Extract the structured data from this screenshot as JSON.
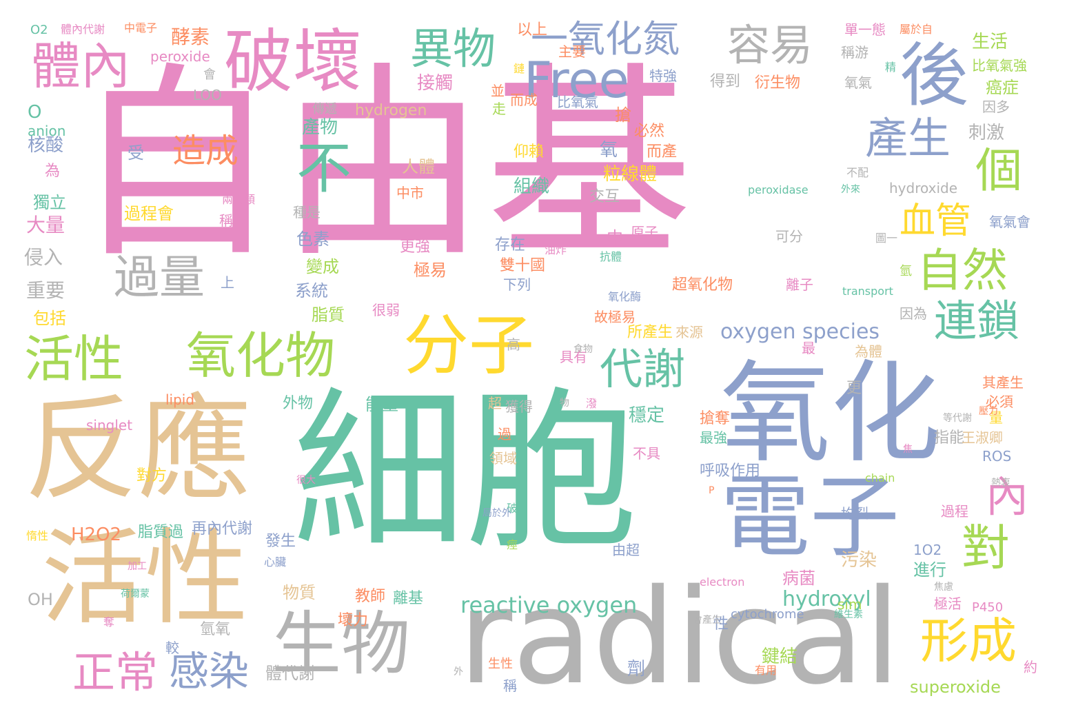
{
  "palette": {
    "pink": "#e78ac3",
    "tan": "#e5c494",
    "green": "#66c2a5",
    "blue": "#8da0cb",
    "gray": "#b3b3b3",
    "lime": "#a6d854",
    "yellow": "#ffd92f",
    "orange": "#fc8d62"
  },
  "words": [
    {
      "text": "自由基",
      "c": "pink"
    },
    {
      "text": "細胞",
      "c": "green"
    },
    {
      "text": "radical",
      "c": "gray"
    },
    {
      "text": "反應",
      "c": "tan"
    },
    {
      "text": "氧化",
      "c": "blue"
    },
    {
      "text": "活性",
      "c": "tan"
    },
    {
      "text": "電子",
      "c": "blue"
    },
    {
      "text": "破壞",
      "c": "pink"
    },
    {
      "text": "後",
      "c": "blue"
    },
    {
      "text": "生物",
      "c": "gray"
    },
    {
      "text": "分子",
      "c": "yellow"
    },
    {
      "text": "氧化物",
      "c": "lime"
    },
    {
      "text": "活性",
      "c": "lime"
    },
    {
      "text": "體內",
      "c": "pink"
    },
    {
      "text": "異物",
      "c": "green"
    },
    {
      "text": "Free",
      "c": "blue"
    },
    {
      "text": "一氧化氮",
      "c": "blue"
    },
    {
      "text": "容易",
      "c": "gray"
    },
    {
      "text": "不",
      "c": "green"
    },
    {
      "text": "產生",
      "c": "blue"
    },
    {
      "text": "個",
      "c": "lime"
    },
    {
      "text": "自然",
      "c": "lime"
    },
    {
      "text": "連鎖",
      "c": "green"
    },
    {
      "text": "代謝",
      "c": "green"
    },
    {
      "text": "對",
      "c": "lime"
    },
    {
      "text": "形成",
      "c": "yellow"
    },
    {
      "text": "正常",
      "c": "pink"
    },
    {
      "text": "感染",
      "c": "blue"
    },
    {
      "text": "血管",
      "c": "yellow"
    },
    {
      "text": "內",
      "c": "pink"
    },
    {
      "text": "過量",
      "c": "gray"
    },
    {
      "text": "造成",
      "c": "orange"
    },
    {
      "text": "reactive oxygen",
      "c": "green"
    },
    {
      "text": "oxygen species",
      "c": "blue"
    },
    {
      "text": "hydroxyl",
      "c": "green"
    },
    {
      "text": "superoxide",
      "c": "lime"
    },
    {
      "text": "酵素",
      "c": "orange"
    },
    {
      "text": "peroxide",
      "c": "pink"
    },
    {
      "text": "接觸",
      "c": "pink"
    },
    {
      "text": "hydrogen",
      "c": "tan"
    },
    {
      "text": "產物",
      "c": "green"
    },
    {
      "text": "核酸",
      "c": "blue"
    },
    {
      "text": "獨立",
      "c": "green"
    },
    {
      "text": "大量",
      "c": "pink"
    },
    {
      "text": "侵入",
      "c": "gray"
    },
    {
      "text": "重要",
      "c": "gray"
    },
    {
      "text": "包括",
      "c": "yellow"
    },
    {
      "text": "O2",
      "c": "green"
    },
    {
      "text": "體內代謝",
      "c": "pink"
    },
    {
      "text": "中電子",
      "c": "orange"
    },
    {
      "text": "以上",
      "c": "orange"
    },
    {
      "text": "主要",
      "c": "orange"
    },
    {
      "text": "單一態",
      "c": "pink"
    },
    {
      "text": "屬於自",
      "c": "orange"
    },
    {
      "text": "生活",
      "c": "lime"
    },
    {
      "text": "稱游",
      "c": "gray"
    },
    {
      "text": "比氧氣強",
      "c": "lime"
    },
    {
      "text": "癌症",
      "c": "lime"
    },
    {
      "text": "因多",
      "c": "gray"
    },
    {
      "text": "刺激",
      "c": "gray"
    },
    {
      "text": "hydroxide",
      "c": "gray"
    },
    {
      "text": "peroxidase",
      "c": "green"
    },
    {
      "text": "氧氣會",
      "c": "blue"
    },
    {
      "text": "anion",
      "c": "green"
    },
    {
      "text": "O",
      "c": "green"
    },
    {
      "text": "LOO",
      "c": "gray"
    },
    {
      "text": "特強",
      "c": "blue"
    },
    {
      "text": "得到",
      "c": "gray"
    },
    {
      "text": "衍生物",
      "c": "orange"
    },
    {
      "text": "氧氣",
      "c": "gray"
    },
    {
      "text": "而成",
      "c": "orange"
    },
    {
      "text": "比氧氣",
      "c": "blue"
    },
    {
      "text": "傳遞",
      "c": "gray"
    },
    {
      "text": "搶",
      "c": "orange"
    },
    {
      "text": "必然",
      "c": "orange"
    },
    {
      "text": "受",
      "c": "blue"
    },
    {
      "text": "人體",
      "c": "tan"
    },
    {
      "text": "仰賴",
      "c": "yellow"
    },
    {
      "text": "組織",
      "c": "green"
    },
    {
      "text": "氧",
      "c": "blue"
    },
    {
      "text": "而產",
      "c": "orange"
    },
    {
      "text": "粒線體",
      "c": "yellow"
    },
    {
      "text": "交互",
      "c": "gray"
    },
    {
      "text": "過程會",
      "c": "yellow"
    },
    {
      "text": "種是",
      "c": "gray"
    },
    {
      "text": "兩大類",
      "c": "pink"
    },
    {
      "text": "稱為",
      "c": "pink"
    },
    {
      "text": "色素",
      "c": "blue"
    },
    {
      "text": "變成",
      "c": "lime"
    },
    {
      "text": "系統",
      "c": "blue"
    },
    {
      "text": "脂質",
      "c": "lime"
    },
    {
      "text": "中",
      "c": "pink"
    },
    {
      "text": "原子",
      "c": "pink"
    },
    {
      "text": "可分",
      "c": "gray"
    },
    {
      "text": "更強",
      "c": "pink"
    },
    {
      "text": "存在",
      "c": "blue"
    },
    {
      "text": "極易",
      "c": "orange"
    },
    {
      "text": "雙十國",
      "c": "orange"
    },
    {
      "text": "下列",
      "c": "blue"
    },
    {
      "text": "抗體",
      "c": "green"
    },
    {
      "text": "超氧化物",
      "c": "orange"
    },
    {
      "text": "離子",
      "c": "pink"
    },
    {
      "text": "transport",
      "c": "green"
    },
    {
      "text": "氧化酶",
      "c": "blue"
    },
    {
      "text": "故極易",
      "c": "orange"
    },
    {
      "text": "因為",
      "c": "gray"
    },
    {
      "text": "很弱",
      "c": "pink"
    },
    {
      "text": "所產生",
      "c": "yellow"
    },
    {
      "text": "來源",
      "c": "tan"
    },
    {
      "text": "高",
      "c": "gray"
    },
    {
      "text": "最",
      "c": "pink"
    },
    {
      "text": "為體",
      "c": "tan"
    },
    {
      "text": "其產生",
      "c": "orange"
    },
    {
      "text": "必須",
      "c": "orange"
    },
    {
      "text": "獲得",
      "c": "gray"
    },
    {
      "text": "具有",
      "c": "pink"
    },
    {
      "text": "lipid",
      "c": "orange"
    },
    {
      "text": "外物",
      "c": "green"
    },
    {
      "text": "能量",
      "c": "green"
    },
    {
      "text": "超",
      "c": "tan"
    },
    {
      "text": "穩定",
      "c": "green"
    },
    {
      "text": "更",
      "c": "gray"
    },
    {
      "text": "singlet",
      "c": "pink"
    },
    {
      "text": "搶奪",
      "c": "orange"
    },
    {
      "text": "最強",
      "c": "green"
    },
    {
      "text": "指能",
      "c": "gray"
    },
    {
      "text": "王淑卿",
      "c": "tan"
    },
    {
      "text": "ROS",
      "c": "blue"
    },
    {
      "text": "對方",
      "c": "yellow"
    },
    {
      "text": "領域",
      "c": "tan"
    },
    {
      "text": "過",
      "c": "orange"
    },
    {
      "text": "不具",
      "c": "pink"
    },
    {
      "text": "呼吸作用",
      "c": "blue"
    },
    {
      "text": "chain",
      "c": "lime"
    },
    {
      "text": "H2O2",
      "c": "orange"
    },
    {
      "text": "脂質過",
      "c": "green"
    },
    {
      "text": "再內代謝",
      "c": "blue"
    },
    {
      "text": "發生",
      "c": "blue"
    },
    {
      "text": "均裂",
      "c": "blue"
    },
    {
      "text": "過程",
      "c": "pink"
    },
    {
      "text": "由超",
      "c": "blue"
    },
    {
      "text": "1O2",
      "c": "blue"
    },
    {
      "text": "污染",
      "c": "tan"
    },
    {
      "text": "進行",
      "c": "green"
    },
    {
      "text": "物質",
      "c": "tan"
    },
    {
      "text": "病菌",
      "c": "pink"
    },
    {
      "text": "electron",
      "c": "pink"
    },
    {
      "text": "sim",
      "c": "lime"
    },
    {
      "text": "極活",
      "c": "pink"
    },
    {
      "text": "P450",
      "c": "pink"
    },
    {
      "text": "OH",
      "c": "gray"
    },
    {
      "text": "教師",
      "c": "orange"
    },
    {
      "text": "離基",
      "c": "green"
    },
    {
      "text": "壞力",
      "c": "orange"
    },
    {
      "text": "cytochrome",
      "c": "blue"
    },
    {
      "text": "氫氧",
      "c": "gray"
    },
    {
      "text": "較",
      "c": "blue"
    },
    {
      "text": "體代謝",
      "c": "gray"
    },
    {
      "text": "劑",
      "c": "blue"
    },
    {
      "text": "鍵結",
      "c": "lime"
    },
    {
      "text": "稱",
      "c": "blue"
    },
    {
      "text": "有用",
      "c": "orange"
    },
    {
      "text": "約",
      "c": "pink"
    },
    {
      "text": "性",
      "c": "blue"
    },
    {
      "text": "上",
      "c": "blue"
    },
    {
      "text": "為",
      "c": "pink"
    },
    {
      "text": "會",
      "c": "gray"
    },
    {
      "text": "並",
      "c": "orange"
    },
    {
      "text": "走",
      "c": "lime"
    },
    {
      "text": "鏈",
      "c": "yellow"
    },
    {
      "text": "精",
      "c": "green"
    },
    {
      "text": "不配",
      "c": "gray"
    },
    {
      "text": "外來",
      "c": "green"
    },
    {
      "text": "圖一",
      "c": "gray"
    },
    {
      "text": "氫",
      "c": "lime"
    },
    {
      "text": "破",
      "c": "green"
    },
    {
      "text": "痙",
      "c": "lime"
    },
    {
      "text": "P",
      "c": "orange"
    },
    {
      "text": "很大",
      "c": "pink"
    },
    {
      "text": "惰性",
      "c": "yellow"
    },
    {
      "text": "加工",
      "c": "pink"
    },
    {
      "text": "荷爾蒙",
      "c": "green"
    },
    {
      "text": "奪",
      "c": "pink"
    },
    {
      "text": "外",
      "c": "gray"
    },
    {
      "text": "生性",
      "c": "orange"
    },
    {
      "text": "中市",
      "c": "orange"
    },
    {
      "text": "油炸",
      "c": "pink"
    },
    {
      "text": "食物",
      "c": "gray"
    },
    {
      "text": "物",
      "c": "gray"
    },
    {
      "text": "潑",
      "c": "pink"
    },
    {
      "text": "量",
      "c": "yellow"
    },
    {
      "text": "壓力",
      "c": "orange"
    },
    {
      "text": "等代謝",
      "c": "gray"
    },
    {
      "text": "焦",
      "c": "pink"
    },
    {
      "text": "熱衷",
      "c": "gray"
    },
    {
      "text": "局於外",
      "c": "blue"
    },
    {
      "text": "心臟",
      "c": "blue"
    },
    {
      "text": "焦慮",
      "c": "gray"
    },
    {
      "text": "會產生",
      "c": "gray"
    },
    {
      "text": "維生素",
      "c": "green"
    }
  ]
}
